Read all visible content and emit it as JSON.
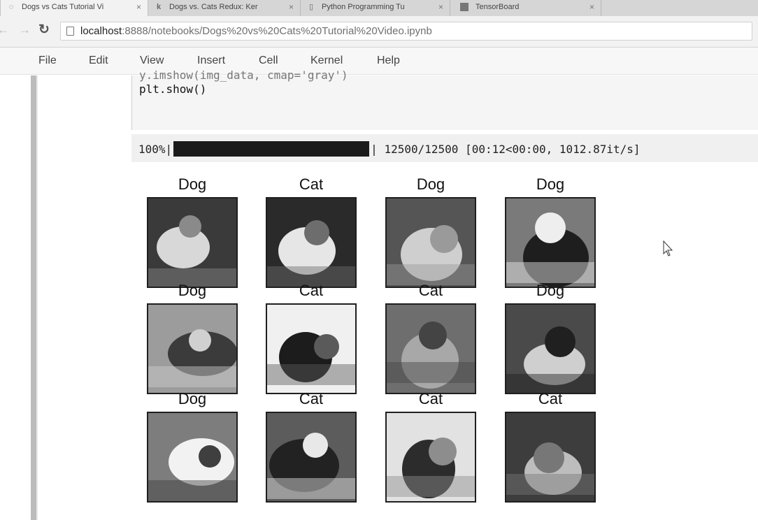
{
  "browser": {
    "tabs": [
      {
        "title": "Dogs vs Cats Tutorial Vi",
        "icon": "jupyter-icon",
        "active": true
      },
      {
        "title": "Dogs vs. Cats Redux: Ker",
        "icon": "kaggle-icon",
        "active": false
      },
      {
        "title": "Python Programming Tu",
        "icon": "page-icon",
        "active": false
      },
      {
        "title": "TensorBoard",
        "icon": "tensorboard-icon",
        "active": false
      }
    ],
    "close_glyph": "×",
    "url_host": "localhost",
    "url_path": ":8888/notebooks/Dogs%20vs%20Cats%20Tutorial%20Video.ipynb"
  },
  "menu": [
    "File",
    "Edit",
    "View",
    "Insert",
    "Cell",
    "Kernel",
    "Help"
  ],
  "cell": {
    "code_partial": "    y.imshow(img_data, cmap='gray')",
    "code": "plt.show()"
  },
  "progress": {
    "percent_label": "100%",
    "fraction": 1.0,
    "counts": "12500/12500",
    "timing": "[00:12<00:00, 1012.87it/s]"
  },
  "grid": [
    {
      "label": "Dog"
    },
    {
      "label": "Cat"
    },
    {
      "label": "Dog"
    },
    {
      "label": "Dog"
    },
    {
      "label": "Dog"
    },
    {
      "label": "Cat"
    },
    {
      "label": "Cat"
    },
    {
      "label": "Dog"
    },
    {
      "label": "Dog"
    },
    {
      "label": "Cat"
    },
    {
      "label": "Cat"
    },
    {
      "label": "Cat"
    }
  ]
}
